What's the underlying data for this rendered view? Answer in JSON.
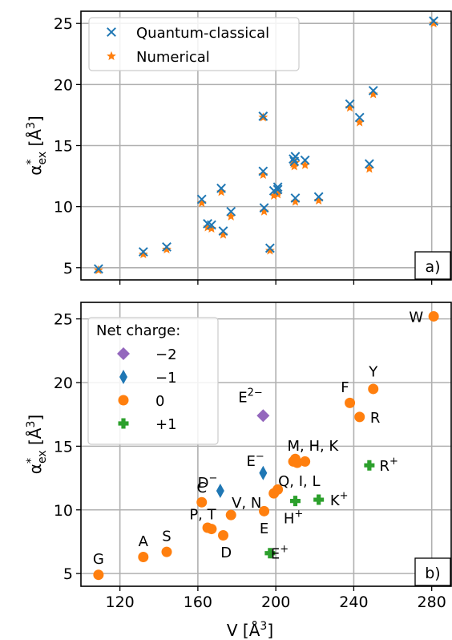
{
  "colors": {
    "quantum": "#1f77b4",
    "numerical": "#ff7f0e",
    "charge_m2": "#9467bd",
    "charge_m1": "#1f77b4",
    "charge_0": "#ff7f0e",
    "charge_p1": "#2ca02c",
    "grid": "#b0b0b0"
  },
  "chart_data": [
    {
      "type": "scatter",
      "panel_label": "a)",
      "ylabel": "α*ex [Å3]",
      "xlim": [
        100,
        290
      ],
      "ylim": [
        4,
        26
      ],
      "xticks": [
        120,
        160,
        200,
        240,
        280
      ],
      "yticks": [
        5,
        10,
        15,
        20,
        25
      ],
      "grid": true,
      "legend": {
        "placement": "top-left",
        "entries": [
          "Quantum-classical",
          "Numerical"
        ]
      },
      "series": [
        {
          "name": "Quantum-classical",
          "marker": "x",
          "x": [
            109,
            132,
            144,
            162,
            165,
            167,
            172,
            173,
            177,
            193.5,
            193.5,
            194,
            197,
            199,
            201,
            201,
            209,
            209.5,
            210,
            210,
            215,
            222,
            238,
            243,
            248,
            250,
            281
          ],
          "y": [
            4.9,
            6.3,
            6.7,
            10.6,
            8.6,
            8.5,
            11.5,
            8.0,
            9.6,
            17.4,
            12.9,
            9.9,
            6.6,
            11.3,
            11.4,
            11.6,
            13.9,
            13.7,
            14.1,
            10.7,
            13.8,
            10.8,
            18.4,
            17.3,
            13.5,
            19.5,
            25.2
          ]
        },
        {
          "name": "Numerical",
          "marker": "star",
          "x": [
            109,
            132,
            144,
            162,
            165,
            167,
            172,
            173,
            177,
            193.5,
            193.5,
            194,
            197,
            199,
            201,
            201,
            209,
            209.5,
            210,
            210,
            215,
            222,
            238,
            243,
            248,
            250,
            281
          ],
          "y": [
            4.8,
            6.1,
            6.5,
            10.3,
            8.3,
            8.2,
            11.2,
            7.7,
            9.2,
            17.3,
            12.6,
            9.6,
            6.4,
            10.9,
            11.0,
            11.2,
            13.5,
            13.3,
            13.6,
            10.4,
            13.4,
            10.5,
            18.1,
            16.9,
            13.1,
            19.2,
            25.0
          ]
        }
      ]
    },
    {
      "type": "scatter",
      "panel_label": "b)",
      "ylabel": "α*ex [Å3]",
      "xlabel": "V [Å3]",
      "xlim": [
        100,
        290
      ],
      "ylim": [
        4,
        26.3
      ],
      "xticks": [
        120,
        160,
        200,
        240,
        280
      ],
      "yticks": [
        5,
        10,
        15,
        20,
        25
      ],
      "grid": true,
      "legend": {
        "placement": "top-left",
        "title": "Net charge:",
        "entries": [
          "−2",
          "−1",
          "0",
          "+1"
        ]
      },
      "series": [
        {
          "name": "−2",
          "marker": "diamond",
          "x": [
            193.5
          ],
          "y": [
            17.4
          ]
        },
        {
          "name": "−1",
          "marker": "thin-diamond",
          "x": [
            171.5,
            193.5
          ],
          "y": [
            11.5,
            12.9
          ]
        },
        {
          "name": "0",
          "marker": "circle",
          "x": [
            109,
            132,
            144,
            162,
            165,
            167,
            173,
            177,
            194,
            199,
            201,
            209,
            210,
            211,
            215,
            238,
            243,
            250,
            281
          ],
          "y": [
            4.9,
            6.3,
            6.7,
            10.6,
            8.6,
            8.5,
            8.0,
            9.6,
            9.9,
            11.3,
            11.6,
            13.8,
            14.0,
            13.7,
            13.8,
            18.4,
            17.3,
            19.5,
            25.2
          ]
        },
        {
          "name": "+1",
          "marker": "plus",
          "x": [
            197,
            210,
            222,
            248
          ],
          "y": [
            6.6,
            10.7,
            10.8,
            13.5
          ]
        }
      ],
      "annotations": [
        {
          "text": "G",
          "x": 109,
          "y": 6.2
        },
        {
          "text": "A",
          "x": 132,
          "y": 7.6
        },
        {
          "text": "S",
          "x": 144,
          "y": 8.0
        },
        {
          "text": "P, T",
          "x": 162.5,
          "y": 9.7
        },
        {
          "text": "C",
          "x": 162,
          "y": 11.8
        },
        {
          "text": "D",
          "x": 174.5,
          "y": 6.7
        },
        {
          "text": "V, N",
          "x": 185,
          "y": 10.6
        },
        {
          "text": "E",
          "x": 194,
          "y": 8.6
        },
        {
          "text": "E",
          "x": 202,
          "y": 6.6
        },
        {
          "text": "E",
          "x": 189.5,
          "y": 13.9
        },
        {
          "text": "D",
          "x": 165,
          "y": 12.2
        },
        {
          "text": "E",
          "x": 187,
          "y": 18.9
        },
        {
          "text": "Q, I, L",
          "x": 212,
          "y": 12.3
        },
        {
          "text": "M, H, K",
          "x": 219,
          "y": 15.1
        },
        {
          "text": "H",
          "x": 209,
          "y": 9.4
        },
        {
          "text": "K",
          "x": 232.5,
          "y": 10.8
        },
        {
          "text": "R",
          "x": 258,
          "y": 13.5
        },
        {
          "text": "F",
          "x": 235.5,
          "y": 19.7
        },
        {
          "text": "Y",
          "x": 250,
          "y": 20.9
        },
        {
          "text": "R",
          "x": 251,
          "y": 17.3
        },
        {
          "text": "W",
          "x": 272,
          "y": 25.2
        }
      ],
      "annotation_superscripts": [
        "−",
        "2−",
        "+",
        "+",
        "+",
        "+"
      ]
    }
  ]
}
